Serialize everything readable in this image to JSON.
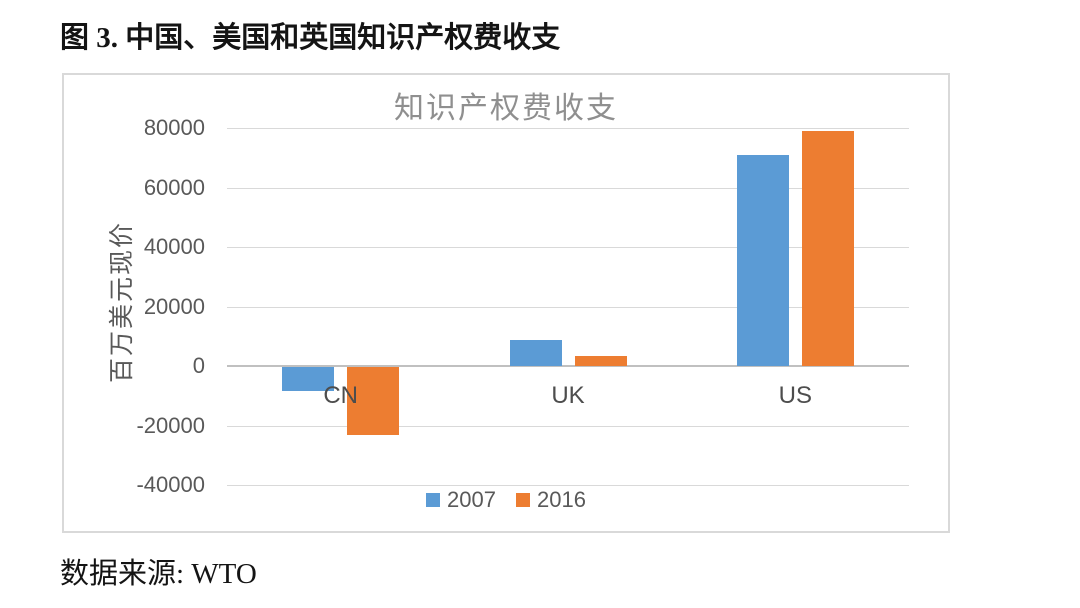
{
  "figure": {
    "title": "图 3. 中国、美国和英国知识产权费收支",
    "source": "数据来源: WTO"
  },
  "chart_data": {
    "type": "bar",
    "title": "知识产权费收支",
    "xlabel": "",
    "ylabel": "百万美元现价",
    "categories": [
      "CN",
      "UK",
      "US"
    ],
    "series": [
      {
        "name": "2007",
        "color": "#5B9BD5",
        "values": [
          -8000,
          8800,
          71000
        ]
      },
      {
        "name": "2016",
        "color": "#ED7D31",
        "values": [
          -23000,
          3500,
          79000
        ]
      }
    ],
    "ylim": [
      -40000,
      80000
    ],
    "yticks": [
      80000,
      60000,
      40000,
      20000,
      0,
      -20000,
      -40000
    ],
    "grid": true,
    "legend_position": "bottom",
    "colors": {
      "grid": "#d9d9d9",
      "zero_axis": "#c0c0c0",
      "tick_text": "#595959",
      "category_text": "#4d4d4d",
      "title_text": "#8f8f8f",
      "legend_text": "#595959",
      "axis_title_text": "#595959"
    }
  }
}
